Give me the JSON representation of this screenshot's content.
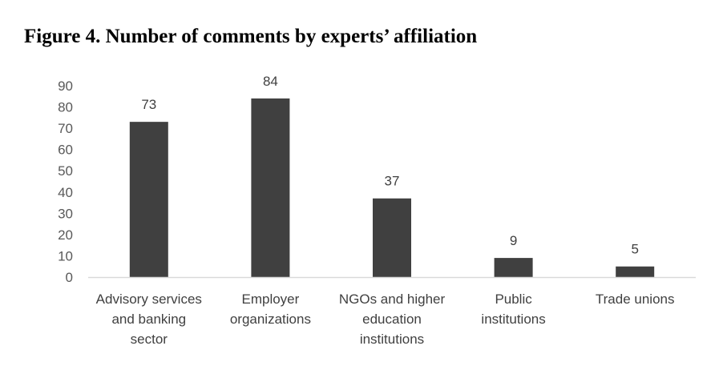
{
  "chart_data": {
    "type": "bar",
    "title": "Figure 4. Number of comments by experts’ affiliation",
    "categories": [
      [
        "Advisory services",
        "and banking",
        "sector"
      ],
      [
        "Employer",
        "organizations"
      ],
      [
        "NGOs and higher",
        "education",
        "institutions"
      ],
      [
        "Public",
        "institutions"
      ],
      [
        "Trade unions"
      ]
    ],
    "values": [
      73,
      84,
      37,
      9,
      5
    ],
    "ylim": [
      0,
      90
    ],
    "yticks": [
      0,
      10,
      20,
      30,
      40,
      50,
      60,
      70,
      80,
      90
    ],
    "grid": false,
    "data_labels": true,
    "bar_color": "#404040",
    "axis_color": "#d9d9d9"
  }
}
